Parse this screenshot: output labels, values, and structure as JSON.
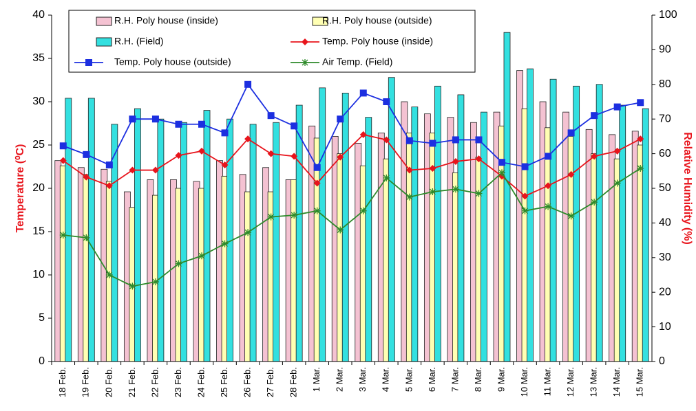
{
  "chart_data": {
    "type": "bar-line",
    "y_label": "Temperature (⁰C)",
    "y2_label": "Relative Humidity (%)",
    "categories": [
      "18 Feb.",
      "19 Feb.",
      "20 Feb.",
      "21 Feb.",
      "22 Feb.",
      "23 Feb.",
      "24 Feb.",
      "25 Feb.",
      "26 Feb.",
      "27 Feb.",
      "28 Feb.",
      "1 Mar.",
      "2 Mar.",
      "3 Mar.",
      "4 Mar.",
      "5 Mar.",
      "6 Mar.",
      "7 Mar.",
      "8 Mar.",
      "9 Mar.",
      "10 Mar.",
      "11 Mar.",
      "12 Mar.",
      "13 Mar.",
      "14 Mar.",
      "15 Mar."
    ],
    "series": [
      {
        "name": "R.H. Poly house (inside)",
        "type": "bar",
        "axis": "y2",
        "color": "#f4c2d2",
        "values": [
          58,
          56,
          55.5,
          49,
          52.5,
          52.5,
          52,
          58,
          54,
          56,
          52.5,
          68,
          65,
          63,
          66,
          75,
          71.5,
          70.5,
          69,
          72,
          84,
          75,
          72,
          67,
          65.5,
          66.5
        ]
      },
      {
        "name": "R.H. Poly house (outside)",
        "type": "bar",
        "axis": "y2",
        "color": "#ffffb3",
        "values": [
          56.5,
          54,
          52,
          44.5,
          48,
          50,
          50,
          53.5,
          49,
          49,
          52.5,
          64.5,
          60,
          56.5,
          58.5,
          66,
          66,
          54.5,
          59,
          68,
          73,
          67.5,
          65,
          60,
          58.5,
          62.5
        ]
      },
      {
        "name": "R.H. (Field)",
        "type": "bar",
        "axis": "y2",
        "color": "#33e0e0",
        "values": [
          76,
          76,
          68.5,
          73,
          70,
          69,
          72.5,
          70,
          68.5,
          69,
          74,
          79,
          77.5,
          70.5,
          82,
          73.5,
          79.5,
          77,
          72,
          95,
          84.5,
          81.5,
          79.5,
          80,
          74,
          73
        ]
      },
      {
        "name": "Temp. Poly house (inside)",
        "type": "line",
        "marker": "diamond",
        "color": "#e8141c",
        "values": [
          23.2,
          21.3,
          20.3,
          22.1,
          22.1,
          23.8,
          24.3,
          22.7,
          25.7,
          24.0,
          23.7,
          20.6,
          23.6,
          26.2,
          25.6,
          22.1,
          22.3,
          23.1,
          23.4,
          21.4,
          19.1,
          20.3,
          21.6,
          23.7,
          24.3,
          25.7
        ]
      },
      {
        "name": "Temp. Poly house (outside)",
        "type": "line",
        "marker": "square",
        "color": "#1c2fe0",
        "values": [
          24.9,
          23.9,
          22.7,
          28.0,
          28.0,
          27.4,
          27.4,
          26.4,
          32.0,
          28.4,
          27.2,
          22.4,
          28.0,
          31.0,
          30.0,
          25.5,
          25.2,
          25.6,
          25.6,
          23.0,
          22.5,
          23.7,
          26.4,
          28.4,
          29.4,
          29.9
        ]
      },
      {
        "name": "Air Temp. (Field)",
        "type": "line",
        "marker": "asterisk",
        "color": "#2e8a2a",
        "values": [
          14.6,
          14.3,
          10.0,
          8.7,
          9.2,
          11.3,
          12.2,
          13.6,
          14.9,
          16.7,
          16.9,
          17.4,
          15.2,
          17.4,
          21.2,
          19.0,
          19.6,
          19.9,
          19.4,
          21.8,
          17.4,
          17.9,
          16.8,
          18.4,
          20.6,
          22.3
        ]
      }
    ],
    "ylim": [
      0,
      40
    ],
    "yticks": [
      0,
      5,
      10,
      15,
      20,
      25,
      30,
      35,
      40
    ],
    "y2lim": [
      0,
      100
    ],
    "y2ticks": [
      0,
      10,
      20,
      30,
      40,
      50,
      60,
      70,
      80,
      90,
      100
    ],
    "grid": false
  }
}
